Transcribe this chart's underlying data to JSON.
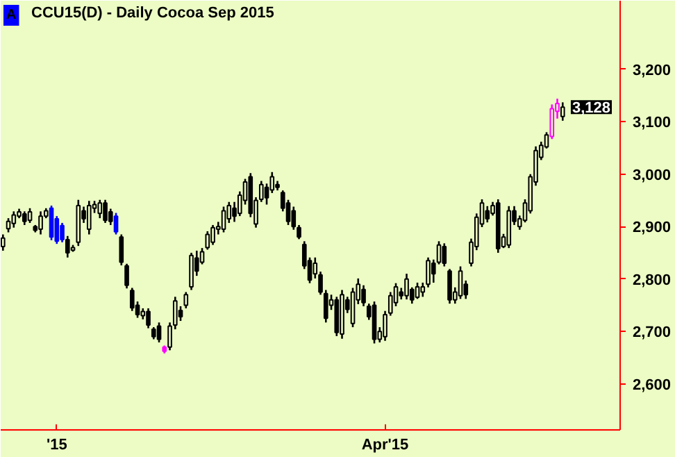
{
  "chart_data": {
    "type": "candlestick",
    "title": "CCU15(D) - Daily  Cocoa  Sep 2015",
    "categories": [
      null,
      null,
      null,
      null,
      null,
      null,
      null,
      null,
      null,
      null,
      "'15",
      null,
      null,
      null,
      null,
      null,
      null,
      null,
      null,
      null,
      null,
      null,
      null,
      null,
      null,
      null,
      null,
      null,
      null,
      null,
      null,
      null,
      null,
      null,
      null,
      null,
      null,
      null,
      null,
      null,
      null,
      null,
      null,
      null,
      null,
      null,
      null,
      null,
      null,
      null,
      null,
      null,
      null,
      null,
      null,
      null,
      null,
      null,
      null,
      null,
      null,
      null,
      null,
      null,
      null,
      null,
      null,
      null,
      null,
      null,
      null,
      "Apr'15",
      null,
      null,
      null,
      null,
      null,
      null,
      null,
      null,
      null,
      null,
      null,
      null,
      null,
      null,
      null,
      null,
      null,
      null,
      null,
      null,
      null,
      null,
      null,
      null,
      null,
      null,
      null,
      null,
      null,
      null,
      null,
      null,
      null
    ],
    "ohlc": [
      [
        2862,
        2885,
        2854,
        2878
      ],
      [
        2896,
        2916,
        2889,
        2910
      ],
      [
        2906,
        2929,
        2898,
        2922
      ],
      [
        2920,
        2934,
        2916,
        2928
      ],
      [
        2924,
        2929,
        2903,
        2910
      ],
      [
        2912,
        2935,
        2907,
        2928
      ],
      [
        2900,
        2903,
        2889,
        2893
      ],
      [
        2895,
        2929,
        2885,
        2920
      ],
      [
        2920,
        2935,
        2916,
        2930
      ],
      [
        2935,
        2940,
        2874,
        2880
      ],
      [
        2915,
        2920,
        2867,
        2872
      ],
      [
        2902,
        2907,
        2870,
        2875
      ],
      [
        2875,
        2882,
        2841,
        2850
      ],
      [
        2855,
        2865,
        2852,
        2860
      ],
      [
        2870,
        2951,
        2863,
        2940
      ],
      [
        2930,
        2938,
        2907,
        2915
      ],
      [
        2895,
        2949,
        2885,
        2940
      ],
      [
        2935,
        2949,
        2926,
        2942
      ],
      [
        2925,
        2951,
        2916,
        2945
      ],
      [
        2945,
        2951,
        2907,
        2912
      ],
      [
        2928,
        2934,
        2903,
        2910
      ],
      [
        2920,
        2926,
        2885,
        2890
      ],
      [
        2880,
        2885,
        2826,
        2832
      ],
      [
        2825,
        2829,
        2782,
        2788
      ],
      [
        2778,
        2783,
        2739,
        2745
      ],
      [
        2750,
        2757,
        2726,
        2732
      ],
      [
        2730,
        2744,
        2723,
        2738
      ],
      [
        2738,
        2744,
        2706,
        2712
      ],
      [
        2704,
        2708,
        2685,
        2690
      ],
      [
        2710,
        2717,
        2679,
        2685
      ],
      [
        2670,
        2673,
        2658,
        2662
      ],
      [
        2670,
        2717,
        2664,
        2710
      ],
      [
        2712,
        2766,
        2704,
        2758
      ],
      [
        2740,
        2748,
        2720,
        2728
      ],
      [
        2750,
        2775,
        2744,
        2770
      ],
      [
        2785,
        2850,
        2779,
        2845
      ],
      [
        2840,
        2854,
        2806,
        2815
      ],
      [
        2832,
        2859,
        2828,
        2852
      ],
      [
        2860,
        2891,
        2856,
        2885
      ],
      [
        2870,
        2903,
        2865,
        2898
      ],
      [
        2895,
        2909,
        2885,
        2900
      ],
      [
        2895,
        2938,
        2889,
        2930
      ],
      [
        2915,
        2947,
        2907,
        2940
      ],
      [
        2935,
        2947,
        2909,
        2920
      ],
      [
        2925,
        2967,
        2920,
        2960
      ],
      [
        2950,
        2991,
        2942,
        2985
      ],
      [
        2995,
        3002,
        2918,
        2925
      ],
      [
        2905,
        2956,
        2898,
        2950
      ],
      [
        2952,
        2987,
        2947,
        2980
      ],
      [
        2975,
        2982,
        2942,
        2955
      ],
      [
        2970,
        3004,
        2964,
        2995
      ],
      [
        2980,
        2987,
        2969,
        2975
      ],
      [
        2965,
        2969,
        2929,
        2935
      ],
      [
        2945,
        2951,
        2903,
        2910
      ],
      [
        2930,
        2938,
        2894,
        2900
      ],
      [
        2898,
        2903,
        2876,
        2880
      ],
      [
        2866,
        2872,
        2819,
        2825
      ],
      [
        2835,
        2841,
        2792,
        2798
      ],
      [
        2810,
        2841,
        2801,
        2830
      ],
      [
        2808,
        2814,
        2770,
        2775
      ],
      [
        2772,
        2779,
        2717,
        2725
      ],
      [
        2750,
        2770,
        2741,
        2760
      ],
      [
        2760,
        2766,
        2691,
        2698
      ],
      [
        2695,
        2779,
        2686,
        2770
      ],
      [
        2760,
        2766,
        2735,
        2742
      ],
      [
        2715,
        2783,
        2708,
        2775
      ],
      [
        2760,
        2801,
        2752,
        2790
      ],
      [
        2780,
        2788,
        2748,
        2755
      ],
      [
        2748,
        2753,
        2722,
        2728
      ],
      [
        2750,
        2757,
        2677,
        2685
      ],
      [
        2685,
        2708,
        2679,
        2700
      ],
      [
        2690,
        2739,
        2682,
        2732
      ],
      [
        2735,
        2775,
        2730,
        2768
      ],
      [
        2755,
        2792,
        2748,
        2785
      ],
      [
        2775,
        2783,
        2761,
        2768
      ],
      [
        2768,
        2810,
        2761,
        2800
      ],
      [
        2780,
        2784,
        2753,
        2760
      ],
      [
        2765,
        2793,
        2762,
        2785
      ],
      [
        2775,
        2793,
        2766,
        2785
      ],
      [
        2790,
        2841,
        2784,
        2835
      ],
      [
        2830,
        2837,
        2793,
        2810
      ],
      [
        2832,
        2872,
        2828,
        2865
      ],
      [
        2862,
        2868,
        2824,
        2830
      ],
      [
        2815,
        2819,
        2753,
        2760
      ],
      [
        2760,
        2784,
        2753,
        2775
      ],
      [
        2768,
        2824,
        2762,
        2815
      ],
      [
        2790,
        2797,
        2762,
        2770
      ],
      [
        2830,
        2877,
        2824,
        2870
      ],
      [
        2862,
        2925,
        2855,
        2918
      ],
      [
        2905,
        2952,
        2899,
        2945
      ],
      [
        2930,
        2939,
        2908,
        2915
      ],
      [
        2925,
        2947,
        2921,
        2940
      ],
      [
        2945,
        2952,
        2850,
        2858
      ],
      [
        2862,
        2886,
        2859,
        2880
      ],
      [
        2865,
        2939,
        2859,
        2930
      ],
      [
        2930,
        2939,
        2903,
        2910
      ],
      [
        2900,
        2921,
        2894,
        2915
      ],
      [
        2912,
        2952,
        2908,
        2945
      ],
      [
        2930,
        3000,
        2925,
        2995
      ],
      [
        2985,
        3053,
        2978,
        3045
      ],
      [
        3032,
        3062,
        3027,
        3055
      ],
      [
        3052,
        3080,
        3049,
        3075
      ],
      [
        3072,
        3133,
        3067,
        3125
      ],
      [
        3120,
        3144,
        3106,
        3135
      ],
      [
        3110,
        3137,
        3102,
        3128
      ]
    ],
    "colors": [
      "#000000",
      "#000000",
      "#000000",
      "#000000",
      "#000000",
      "#000000",
      "#000000",
      "#000000",
      "#000000",
      "#0000ff",
      "#0000ff",
      "#0000ff",
      "#000000",
      "#000000",
      "#000000",
      "#000000",
      "#000000",
      "#000000",
      "#000000",
      "#000000",
      "#000000",
      "#0000ff",
      "#000000",
      "#000000",
      "#000000",
      "#000000",
      "#000000",
      "#000000",
      "#000000",
      "#000000",
      "#ff00ff",
      "#000000",
      "#000000",
      "#000000",
      "#000000",
      "#000000",
      "#000000",
      "#000000",
      "#000000",
      "#000000",
      "#000000",
      "#000000",
      "#000000",
      "#000000",
      "#000000",
      "#000000",
      "#000000",
      "#000000",
      "#000000",
      "#000000",
      "#000000",
      "#000000",
      "#000000",
      "#000000",
      "#000000",
      "#000000",
      "#000000",
      "#000000",
      "#000000",
      "#000000",
      "#000000",
      "#000000",
      "#000000",
      "#000000",
      "#000000",
      "#000000",
      "#000000",
      "#000000",
      "#000000",
      "#000000",
      "#000000",
      "#000000",
      "#000000",
      "#000000",
      "#000000",
      "#000000",
      "#000000",
      "#000000",
      "#000000",
      "#000000",
      "#000000",
      "#000000",
      "#000000",
      "#000000",
      "#000000",
      "#000000",
      "#000000",
      "#000000",
      "#000000",
      "#000000",
      "#000000",
      "#000000",
      "#000000",
      "#000000",
      "#000000",
      "#000000",
      "#000000",
      "#000000",
      "#000000",
      "#000000",
      "#000000",
      "#000000",
      "#ff00ff",
      "#ff00ff",
      "#000000"
    ],
    "ylim": [
      2512,
      3331
    ],
    "yticks": [
      {
        "value": 2600,
        "label": "2,600"
      },
      {
        "value": 2700,
        "label": "2,700"
      },
      {
        "value": 2800,
        "label": "2,800"
      },
      {
        "value": 2900,
        "label": "2,900"
      },
      {
        "value": 3000,
        "label": "3,000"
      },
      {
        "value": 3100,
        "label": "3,100"
      },
      {
        "value": 3200,
        "label": "3,200"
      }
    ],
    "annotations": [
      "A",
      "3,128"
    ],
    "grid": false
  }
}
